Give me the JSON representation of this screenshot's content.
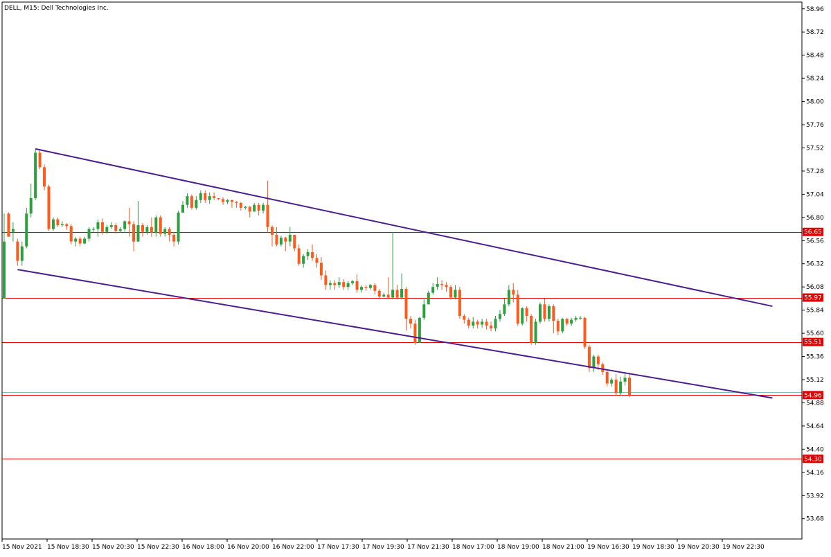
{
  "symbol_title": "DELL, M15:  Dell Technologies Inc.",
  "colors": {
    "bull": "#2e9e3e",
    "bear": "#ff5a1e",
    "channel": "#4b1e8c",
    "level": "#e00000",
    "current_price": "#7fbcbc",
    "axis": "#000000",
    "background": "#ffffff"
  },
  "chart_data": {
    "type": "candlestick",
    "title": "DELL, M15:  Dell Technologies Inc.",
    "ylim": [
      53.47,
      59.03
    ],
    "y_ticks": [
      "58.96",
      "58.72",
      "58.48",
      "58.24",
      "58.00",
      "57.76",
      "57.52",
      "57.28",
      "57.04",
      "56.80",
      "56.56",
      "56.32",
      "56.08",
      "55.84",
      "55.60",
      "55.36",
      "55.12",
      "54.88",
      "54.64",
      "54.40",
      "54.16",
      "53.92",
      "53.68"
    ],
    "x_tick_labels": [
      "15 Nov 2021",
      "15 Nov 18:30",
      "15 Nov 20:30",
      "15 Nov 22:30",
      "16 Nov 18:00",
      "16 Nov 20:00",
      "16 Nov 22:00",
      "17 Nov 17:30",
      "17 Nov 19:30",
      "17 Nov 21:30",
      "18 Nov 17:00",
      "18 Nov 19:00",
      "18 Nov 21:00",
      "19 Nov 16:30",
      "19 Nov 18:30",
      "19 Nov 20:30",
      "19 Nov 22:30"
    ],
    "horizontal_levels": [
      {
        "price": 56.65,
        "label": "56.65"
      },
      {
        "price": 55.97,
        "label": "55.97"
      },
      {
        "price": 55.51,
        "label": "55.51"
      },
      {
        "price": 54.96,
        "label": "54.96"
      },
      {
        "price": 54.3,
        "label": "54.30"
      }
    ],
    "current_price": 54.99,
    "channel": {
      "upper": {
        "from_bar": 7,
        "from_price": 57.51,
        "to_bar": 172,
        "to_price": 55.88
      },
      "lower": {
        "from_bar": 3,
        "from_price": 56.26,
        "to_bar": 172,
        "to_price": 54.93
      }
    },
    "candles": [
      [
        55.96,
        56.55,
        55.96,
        56.84
      ],
      [
        56.84,
        56.6,
        56.6,
        56.85
      ],
      [
        56.65,
        56.68,
        56.55,
        56.75
      ],
      [
        56.55,
        56.35,
        56.3,
        56.58
      ],
      [
        56.35,
        56.5,
        56.3,
        56.55
      ],
      [
        56.5,
        56.84,
        56.48,
        56.9
      ],
      [
        56.84,
        57.0,
        56.8,
        57.15
      ],
      [
        57.0,
        57.47,
        56.98,
        57.51
      ],
      [
        57.47,
        57.32,
        57.3,
        57.5
      ],
      [
        57.32,
        57.12,
        57.08,
        57.35
      ],
      [
        57.12,
        56.68,
        56.66,
        57.14
      ],
      [
        56.68,
        56.78,
        56.66,
        56.8
      ],
      [
        56.78,
        56.72,
        56.7,
        56.8
      ],
      [
        56.72,
        56.73,
        56.7,
        56.76
      ],
      [
        56.73,
        56.71,
        56.67,
        56.74
      ],
      [
        56.71,
        56.55,
        56.52,
        56.73
      ],
      [
        56.55,
        56.58,
        56.5,
        56.6
      ],
      [
        56.58,
        56.53,
        56.5,
        56.6
      ],
      [
        56.53,
        56.58,
        56.52,
        56.6
      ],
      [
        56.58,
        56.68,
        56.55,
        56.7
      ],
      [
        56.68,
        56.68,
        56.65,
        56.7
      ],
      [
        56.68,
        56.75,
        56.6,
        56.78
      ],
      [
        56.75,
        56.65,
        56.62,
        56.79
      ],
      [
        56.65,
        56.7,
        56.63,
        56.72
      ],
      [
        56.7,
        56.72,
        56.68,
        56.75
      ],
      [
        56.72,
        56.66,
        56.63,
        56.74
      ],
      [
        56.66,
        56.68,
        56.64,
        56.7
      ],
      [
        56.68,
        56.76,
        56.65,
        56.77
      ],
      [
        56.76,
        56.73,
        56.6,
        56.9
      ],
      [
        56.73,
        56.55,
        56.45,
        56.76
      ],
      [
        56.55,
        56.72,
        56.55,
        56.97
      ],
      [
        56.72,
        56.65,
        56.6,
        56.74
      ],
      [
        56.65,
        56.7,
        56.62,
        56.72
      ],
      [
        56.7,
        56.64,
        56.6,
        56.8
      ],
      [
        56.64,
        56.8,
        56.6,
        56.82
      ],
      [
        56.8,
        56.63,
        56.6,
        56.82
      ],
      [
        56.63,
        56.68,
        56.6,
        56.7
      ],
      [
        56.68,
        56.62,
        56.55,
        56.7
      ],
      [
        56.62,
        56.55,
        56.5,
        56.65
      ],
      [
        56.55,
        56.85,
        56.52,
        56.87
      ],
      [
        56.85,
        56.93,
        56.85,
        56.97
      ],
      [
        56.93,
        57.02,
        56.9,
        57.05
      ],
      [
        57.02,
        56.9,
        56.88,
        57.04
      ],
      [
        56.9,
        56.98,
        56.88,
        57.02
      ],
      [
        56.98,
        57.05,
        56.95,
        57.08
      ],
      [
        57.05,
        56.98,
        56.95,
        57.08
      ],
      [
        56.98,
        57.02,
        56.94,
        57.06
      ],
      [
        57.02,
        57.0,
        56.98,
        57.06
      ],
      [
        57.0,
        56.99,
        56.98,
        57.0
      ],
      [
        56.99,
        56.96,
        56.93,
        57.01
      ],
      [
        56.96,
        56.98,
        56.94,
        56.99
      ],
      [
        56.98,
        56.96,
        56.9,
        56.98
      ],
      [
        56.96,
        56.95,
        56.9,
        56.97
      ],
      [
        56.95,
        56.9,
        56.87,
        56.96
      ],
      [
        56.9,
        56.91,
        56.88,
        56.92
      ],
      [
        56.91,
        56.86,
        56.8,
        56.92
      ],
      [
        56.86,
        56.93,
        56.86,
        56.95
      ],
      [
        56.93,
        56.87,
        56.82,
        56.95
      ],
      [
        56.87,
        56.93,
        56.84,
        56.95
      ],
      [
        56.93,
        56.7,
        56.65,
        57.18
      ],
      [
        56.7,
        56.62,
        56.5,
        56.72
      ],
      [
        56.62,
        56.52,
        56.5,
        56.7
      ],
      [
        56.52,
        56.59,
        56.5,
        56.61
      ],
      [
        56.59,
        56.55,
        56.45,
        56.6
      ],
      [
        56.55,
        56.62,
        56.5,
        56.7
      ],
      [
        56.62,
        56.48,
        56.45,
        56.62
      ],
      [
        56.48,
        56.32,
        56.3,
        56.52
      ],
      [
        56.32,
        56.4,
        56.28,
        56.42
      ],
      [
        56.4,
        56.44,
        56.36,
        56.47
      ],
      [
        56.44,
        56.38,
        56.35,
        56.52
      ],
      [
        56.38,
        56.33,
        56.28,
        56.42
      ],
      [
        56.33,
        56.2,
        56.15,
        56.39
      ],
      [
        56.2,
        56.1,
        56.05,
        56.25
      ],
      [
        56.1,
        56.12,
        56.05,
        56.15
      ],
      [
        56.12,
        56.1,
        56.05,
        56.15
      ],
      [
        56.1,
        56.13,
        56.07,
        56.18
      ],
      [
        56.13,
        56.08,
        56.05,
        56.16
      ],
      [
        56.08,
        56.12,
        56.05,
        56.14
      ],
      [
        56.12,
        56.14,
        56.1,
        56.15
      ],
      [
        56.14,
        56.05,
        56.02,
        56.21
      ],
      [
        56.05,
        56.08,
        56.02,
        56.1
      ],
      [
        56.08,
        56.07,
        56.04,
        56.1
      ],
      [
        56.07,
        56.1,
        56.05,
        56.11
      ],
      [
        56.1,
        56.04,
        56.0,
        56.12
      ],
      [
        56.04,
        55.98,
        55.95,
        56.06
      ],
      [
        55.98,
        56.0,
        55.97,
        56.02
      ],
      [
        56.0,
        55.97,
        55.95,
        56.18
      ],
      [
        55.97,
        56.05,
        55.95,
        56.65
      ],
      [
        56.05,
        55.97,
        55.95,
        56.1
      ],
      [
        55.97,
        56.06,
        55.95,
        56.22
      ],
      [
        56.06,
        55.75,
        55.63,
        56.08
      ],
      [
        55.75,
        55.7,
        55.65,
        55.78
      ],
      [
        55.7,
        55.5,
        55.48,
        55.74
      ],
      [
        55.5,
        55.76,
        55.5,
        55.77
      ],
      [
        55.76,
        55.9,
        55.74,
        55.95
      ],
      [
        55.9,
        56.02,
        55.9,
        56.04
      ],
      [
        56.02,
        56.08,
        56.0,
        56.12
      ],
      [
        56.08,
        56.11,
        56.05,
        56.18
      ],
      [
        56.11,
        56.1,
        56.05,
        56.15
      ],
      [
        56.1,
        56.08,
        56.03,
        56.13
      ],
      [
        56.08,
        55.97,
        55.95,
        56.1
      ],
      [
        55.97,
        56.05,
        55.95,
        56.1
      ],
      [
        56.05,
        55.78,
        55.75,
        56.08
      ],
      [
        55.78,
        55.74,
        55.7,
        55.8
      ],
      [
        55.74,
        55.68,
        55.65,
        55.76
      ],
      [
        55.68,
        55.72,
        55.65,
        55.77
      ],
      [
        55.72,
        55.69,
        55.65,
        55.74
      ],
      [
        55.69,
        55.72,
        55.66,
        55.75
      ],
      [
        55.72,
        55.68,
        55.64,
        55.75
      ],
      [
        55.68,
        55.65,
        55.62,
        55.72
      ],
      [
        55.65,
        55.75,
        55.62,
        55.78
      ],
      [
        55.75,
        55.8,
        55.72,
        55.84
      ],
      [
        55.8,
        55.9,
        55.78,
        55.96
      ],
      [
        55.9,
        56.05,
        55.88,
        56.1
      ],
      [
        56.05,
        56.0,
        55.92,
        56.12
      ],
      [
        56.0,
        55.7,
        55.68,
        56.05
      ],
      [
        55.7,
        55.86,
        55.68,
        55.87
      ],
      [
        55.86,
        55.78,
        55.72,
        55.88
      ],
      [
        55.78,
        55.5,
        55.48,
        55.8
      ],
      [
        55.5,
        55.72,
        55.48,
        55.75
      ],
      [
        55.72,
        55.9,
        55.7,
        55.92
      ],
      [
        55.9,
        55.75,
        55.72,
        55.96
      ],
      [
        55.75,
        55.88,
        55.72,
        55.9
      ],
      [
        55.88,
        55.73,
        55.6,
        55.9
      ],
      [
        55.73,
        55.62,
        55.58,
        55.75
      ],
      [
        55.62,
        55.75,
        55.6,
        55.76
      ],
      [
        55.75,
        55.7,
        55.68,
        55.76
      ],
      [
        55.7,
        55.74,
        55.68,
        55.76
      ],
      [
        55.74,
        55.76,
        55.72,
        55.78
      ],
      [
        55.76,
        55.76,
        55.74,
        55.78
      ],
      [
        55.76,
        55.46,
        55.44,
        55.77
      ],
      [
        55.46,
        55.24,
        55.2,
        55.48
      ],
      [
        55.24,
        55.36,
        55.2,
        55.38
      ],
      [
        55.36,
        55.28,
        55.22,
        55.38
      ],
      [
        55.28,
        55.2,
        55.17,
        55.3
      ],
      [
        55.2,
        55.08,
        55.05,
        55.22
      ],
      [
        55.08,
        55.12,
        55.05,
        55.14
      ],
      [
        55.12,
        54.98,
        54.95,
        55.18
      ],
      [
        54.98,
        55.1,
        54.95,
        55.15
      ],
      [
        55.1,
        55.14,
        55.06,
        55.2
      ],
      [
        55.14,
        54.96,
        54.94,
        55.19
      ]
    ]
  }
}
